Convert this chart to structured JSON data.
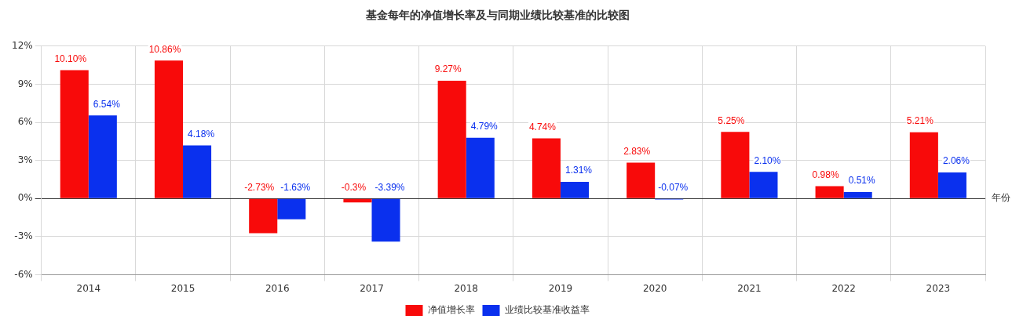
{
  "chart_data": {
    "type": "bar",
    "title": "基金每年的净值增长率及与同期业绩比较基准的比较图",
    "xlabel": "年份",
    "categories": [
      "2014",
      "2015",
      "2016",
      "2017",
      "2018",
      "2019",
      "2020",
      "2021",
      "2022",
      "2023"
    ],
    "series": [
      {
        "name": "净值增长率",
        "color": "#f80a0a",
        "values": [
          10.1,
          10.86,
          -2.73,
          -0.3,
          9.27,
          4.74,
          2.83,
          5.25,
          0.98,
          5.21
        ],
        "value_labels": [
          "10.10%",
          "10.86%",
          "-2.73%",
          "-0.3%",
          "9.27%",
          "4.74%",
          "2.83%",
          "5.25%",
          "0.98%",
          "5.21%"
        ]
      },
      {
        "name": "业绩比较基准收益率",
        "color": "#0a30ee",
        "values": [
          6.54,
          4.18,
          -1.63,
          -3.39,
          4.79,
          1.31,
          -0.07,
          2.1,
          0.51,
          2.06
        ],
        "value_labels": [
          "6.54%",
          "4.18%",
          "-1.63%",
          "-3.39%",
          "4.79%",
          "1.31%",
          "-0.07%",
          "2.10%",
          "0.51%",
          "2.06%"
        ]
      }
    ],
    "ylim": [
      -6,
      12
    ],
    "yticks": [
      {
        "value": -6,
        "label": "-6%"
      },
      {
        "value": -3,
        "label": "-3%"
      },
      {
        "value": 0,
        "label": "0%"
      },
      {
        "value": 3,
        "label": "3%"
      },
      {
        "value": 6,
        "label": "6%"
      },
      {
        "value": 9,
        "label": "9%"
      },
      {
        "value": 12,
        "label": "12%"
      }
    ],
    "grid": true,
    "legend": "bottom"
  }
}
